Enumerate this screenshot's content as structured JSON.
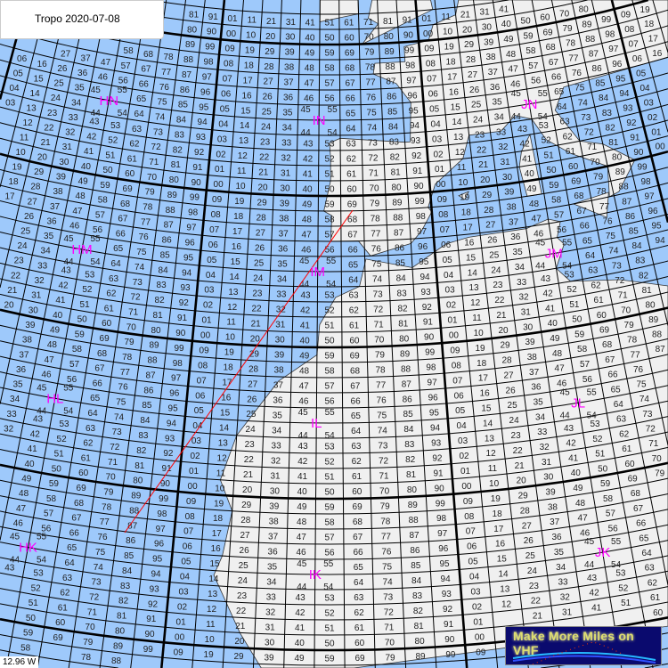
{
  "title": "Tropo 2020-07-08",
  "cursor_readout": "12.96 W",
  "logo_text": "Make More Miles on VHF",
  "colors": {
    "sea": "#9ec9fb",
    "land": "#f0f0f0",
    "field_label": "#ff00ff",
    "path_line": "#ff0000",
    "grid": "#000000"
  },
  "grid": {
    "system": "Maidenhead locator",
    "square_size_deg": [
      2,
      1
    ],
    "field_size_deg": [
      20,
      10
    ]
  },
  "fields": [
    {
      "label": "HN",
      "lon": -30,
      "lat": 45
    },
    {
      "label": "IN",
      "lon": -10,
      "lat": 45
    },
    {
      "label": "JN",
      "lon": 10,
      "lat": 45
    },
    {
      "label": "HM",
      "lon": -30,
      "lat": 35
    },
    {
      "label": "IM",
      "lon": -10,
      "lat": 35
    },
    {
      "label": "JM",
      "lon": 10,
      "lat": 35
    },
    {
      "label": "HL",
      "lon": -30,
      "lat": 25
    },
    {
      "label": "IL",
      "lon": -10,
      "lat": 25
    },
    {
      "label": "JL",
      "lon": 10,
      "lat": 25
    },
    {
      "label": "HK",
      "lon": -30,
      "lat": 15
    },
    {
      "label": "IK",
      "lon": -10,
      "lat": 15
    },
    {
      "label": "JK",
      "lon": 10,
      "lat": 15
    }
  ]
}
